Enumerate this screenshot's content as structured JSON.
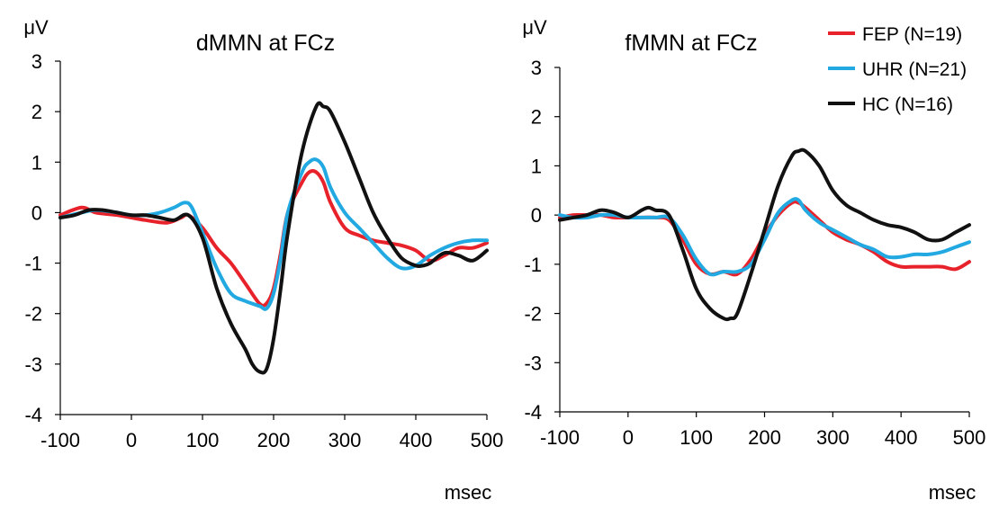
{
  "legend": [
    {
      "name": "FEP (N=19)",
      "color": "#e8222a"
    },
    {
      "name": "UHR (N=21)",
      "color": "#22a9e1"
    },
    {
      "name": "HC (N=16)",
      "color": "#111111"
    }
  ],
  "chart_data": [
    {
      "type": "line",
      "title": "dMMN at FCz",
      "ylabel": "μV",
      "xlabel": "msec",
      "xlim": [
        -100,
        500
      ],
      "ylim": [
        -4,
        3
      ],
      "xticks": [
        -100,
        0,
        100,
        200,
        300,
        400,
        500
      ],
      "yticks": [
        3,
        2,
        1,
        0,
        -1,
        -2,
        -3,
        -4
      ],
      "grid": false,
      "series": [
        {
          "name": "FEP (N=19)",
          "color": "#e8222a",
          "x": [
            -100,
            -70,
            -50,
            -20,
            0,
            20,
            50,
            70,
            80,
            100,
            120,
            140,
            160,
            180,
            190,
            200,
            210,
            220,
            240,
            250,
            260,
            270,
            280,
            300,
            320,
            340,
            360,
            380,
            400,
            420,
            440,
            460,
            480,
            500
          ],
          "y": [
            -0.05,
            0.1,
            0.0,
            -0.05,
            -0.1,
            -0.15,
            -0.2,
            -0.1,
            -0.05,
            -0.3,
            -0.7,
            -1.0,
            -1.4,
            -1.8,
            -1.8,
            -1.5,
            -0.8,
            0.0,
            0.6,
            0.8,
            0.8,
            0.6,
            0.2,
            -0.3,
            -0.45,
            -0.55,
            -0.6,
            -0.65,
            -0.75,
            -0.95,
            -0.85,
            -0.7,
            -0.7,
            -0.6
          ]
        },
        {
          "name": "UHR (N=21)",
          "color": "#22a9e1",
          "x": [
            -100,
            -70,
            -50,
            -20,
            0,
            20,
            40,
            60,
            75,
            85,
            100,
            120,
            140,
            160,
            180,
            190,
            200,
            210,
            220,
            240,
            250,
            260,
            270,
            280,
            300,
            320,
            340,
            360,
            380,
            400,
            420,
            440,
            460,
            480,
            500
          ],
          "y": [
            -0.1,
            0.0,
            0.05,
            0.0,
            -0.05,
            -0.05,
            0.0,
            0.1,
            0.2,
            0.1,
            -0.4,
            -1.1,
            -1.6,
            -1.75,
            -1.85,
            -1.9,
            -1.6,
            -0.9,
            0.0,
            0.8,
            1.0,
            1.05,
            0.9,
            0.5,
            0.0,
            -0.3,
            -0.6,
            -0.9,
            -1.1,
            -1.05,
            -0.85,
            -0.7,
            -0.6,
            -0.55,
            -0.55
          ]
        },
        {
          "name": "HC (N=16)",
          "color": "#111111",
          "x": [
            -100,
            -80,
            -60,
            -40,
            -20,
            0,
            20,
            40,
            60,
            80,
            100,
            120,
            140,
            160,
            170,
            180,
            190,
            200,
            210,
            220,
            240,
            260,
            270,
            280,
            300,
            320,
            340,
            360,
            380,
            400,
            410,
            420,
            440,
            460,
            480,
            500
          ],
          "y": [
            -0.1,
            -0.05,
            0.05,
            0.05,
            0.0,
            -0.05,
            -0.05,
            -0.1,
            -0.15,
            -0.05,
            -0.5,
            -1.5,
            -2.2,
            -2.7,
            -3.0,
            -3.15,
            -3.1,
            -2.5,
            -1.5,
            -0.4,
            1.2,
            2.1,
            2.1,
            2.0,
            1.4,
            0.7,
            0.0,
            -0.5,
            -0.9,
            -1.05,
            -1.05,
            -1.0,
            -0.8,
            -0.85,
            -0.95,
            -0.75
          ]
        }
      ]
    },
    {
      "type": "line",
      "title": "fMMN at FCz",
      "ylabel": "μV",
      "xlabel": "msec",
      "xlim": [
        -100,
        500
      ],
      "ylim": [
        -4,
        3
      ],
      "xticks": [
        -100,
        0,
        100,
        200,
        300,
        400,
        500
      ],
      "yticks": [
        3,
        2,
        1,
        0,
        -1,
        -2,
        -3,
        -4
      ],
      "grid": false,
      "series": [
        {
          "name": "FEP (N=19)",
          "color": "#e8222a",
          "x": [
            -100,
            -80,
            -60,
            -40,
            -20,
            0,
            20,
            40,
            60,
            80,
            100,
            120,
            140,
            160,
            180,
            200,
            220,
            240,
            250,
            260,
            280,
            300,
            320,
            340,
            360,
            380,
            400,
            420,
            440,
            460,
            480,
            500
          ],
          "y": [
            -0.05,
            0.0,
            0.0,
            0.0,
            -0.05,
            -0.05,
            -0.05,
            -0.05,
            -0.1,
            -0.5,
            -1.0,
            -1.2,
            -1.15,
            -1.2,
            -0.9,
            -0.4,
            0.0,
            0.25,
            0.25,
            0.15,
            -0.1,
            -0.35,
            -0.5,
            -0.6,
            -0.75,
            -0.95,
            -1.05,
            -1.05,
            -1.05,
            -1.05,
            -1.1,
            -0.95
          ]
        },
        {
          "name": "UHR (N=21)",
          "color": "#22a9e1",
          "x": [
            -100,
            -80,
            -60,
            -40,
            -20,
            0,
            20,
            40,
            60,
            80,
            100,
            120,
            140,
            160,
            180,
            200,
            220,
            240,
            250,
            260,
            280,
            300,
            320,
            340,
            360,
            380,
            400,
            420,
            440,
            460,
            480,
            500
          ],
          "y": [
            0.0,
            -0.05,
            -0.05,
            0.0,
            0.0,
            -0.05,
            -0.05,
            -0.05,
            -0.05,
            -0.4,
            -0.9,
            -1.2,
            -1.15,
            -1.15,
            -1.0,
            -0.5,
            0.05,
            0.3,
            0.3,
            0.1,
            -0.15,
            -0.3,
            -0.45,
            -0.6,
            -0.7,
            -0.85,
            -0.85,
            -0.8,
            -0.8,
            -0.75,
            -0.65,
            -0.55
          ]
        },
        {
          "name": "HC (N=16)",
          "color": "#111111",
          "x": [
            -100,
            -80,
            -60,
            -40,
            -20,
            0,
            20,
            30,
            40,
            60,
            80,
            100,
            120,
            140,
            150,
            160,
            180,
            200,
            220,
            240,
            250,
            260,
            280,
            300,
            320,
            340,
            360,
            380,
            400,
            420,
            440,
            460,
            480,
            500
          ],
          "y": [
            -0.1,
            -0.05,
            0.0,
            0.1,
            0.05,
            -0.05,
            0.1,
            0.15,
            0.1,
            0.0,
            -0.7,
            -1.5,
            -1.9,
            -2.1,
            -2.1,
            -2.0,
            -1.2,
            -0.3,
            0.6,
            1.2,
            1.3,
            1.3,
            1.0,
            0.5,
            0.2,
            0.05,
            -0.1,
            -0.2,
            -0.25,
            -0.35,
            -0.5,
            -0.5,
            -0.35,
            -0.2
          ]
        }
      ]
    }
  ]
}
